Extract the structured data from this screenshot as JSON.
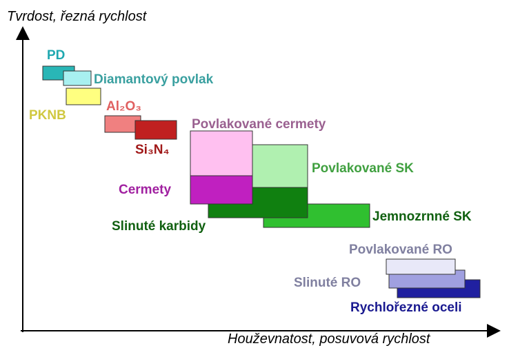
{
  "axes": {
    "y_label": "Tvrdost, řezná rychlost",
    "x_label": "Houževnatost, posuvová rychlost"
  },
  "nodes": [
    {
      "label": "PD"
    },
    {
      "label": "Diamantový povlak"
    },
    {
      "label": "PKNB"
    },
    {
      "label": "Al₂O₃"
    },
    {
      "label": "Si₃N₄"
    },
    {
      "label": "Povlakované cermety"
    },
    {
      "label": "Povlakované SK"
    },
    {
      "label": "Cermety"
    },
    {
      "label": "Slinuté karbidy"
    },
    {
      "label": "Jemnozrnné SK"
    },
    {
      "label": "Povlakované RO"
    },
    {
      "label": "Slinuté RO"
    },
    {
      "label": "Rychlořezné oceli"
    }
  ]
}
